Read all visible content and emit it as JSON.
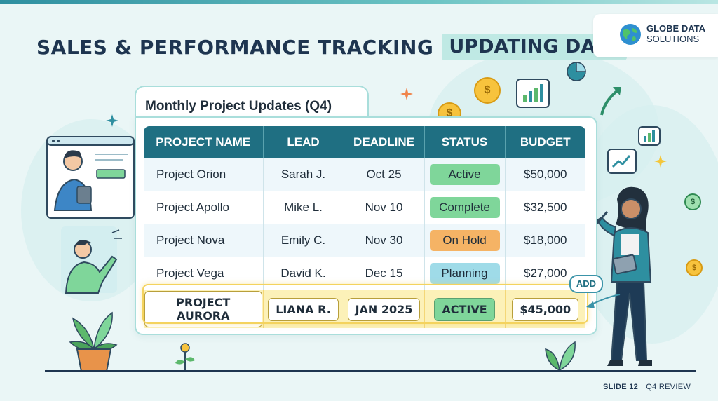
{
  "header": {
    "title": "SALES & PERFORMANCE TRACKING",
    "tag": "UPDATING DATA"
  },
  "logo": {
    "line1": "GLOBE DATA",
    "line2": "SOLUTIONS",
    "icon": "globe-icon"
  },
  "card": {
    "title": "Monthly Project Updates (Q4)"
  },
  "table": {
    "columns": [
      "PROJECT NAME",
      "LEAD",
      "DEADLINE",
      "STATUS",
      "BUDGET"
    ],
    "rows": [
      {
        "name": "Project Orion",
        "lead": "Sarah J.",
        "deadline": "Oct 25",
        "status": "Active",
        "budget": "$50,000"
      },
      {
        "name": "Project Apollo",
        "lead": "Mike L.",
        "deadline": "Nov 10",
        "status": "Complete",
        "budget": "$32,500"
      },
      {
        "name": "Project Nova",
        "lead": "Emily C.",
        "deadline": "Nov 30",
        "status": "On Hold",
        "budget": "$18,000"
      },
      {
        "name": "Project Vega",
        "lead": "David K.",
        "deadline": "Dec 15",
        "status": "Planning",
        "budget": "$27,000"
      }
    ],
    "new_row": {
      "name": "PROJECT AURORA",
      "lead": "LIANA R.",
      "deadline": "JAN 2025",
      "status": "ACTIVE",
      "budget": "$45,000"
    }
  },
  "add_badge": "ADD",
  "footer": {
    "slide": "SLIDE 12",
    "section": "Q4 REVIEW"
  },
  "colors": {
    "header_bg": "#1f6f82",
    "active": "#7fd69a",
    "on_hold": "#f5b365",
    "planning": "#9fdbe8",
    "highlight": "#fcf1b8"
  }
}
